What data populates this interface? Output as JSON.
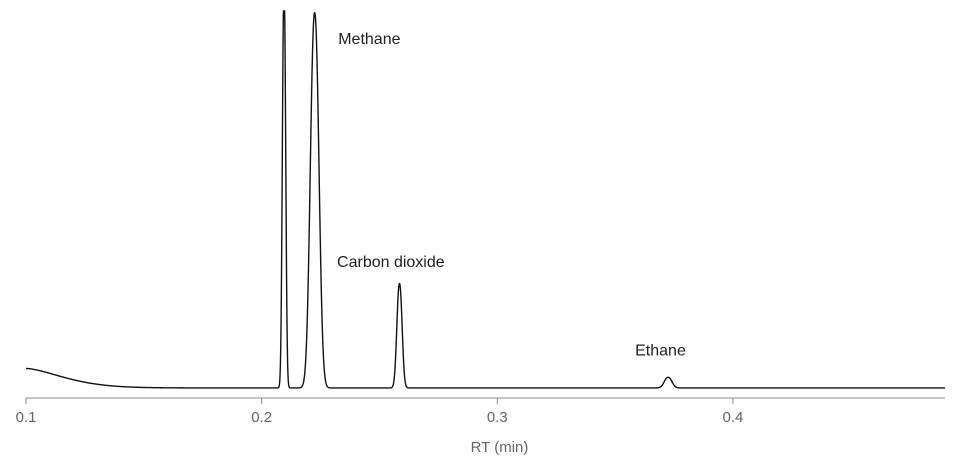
{
  "chart_data": {
    "type": "line",
    "xlabel": "RT (min)",
    "ylabel": "",
    "xlim": [
      0.1,
      0.49
    ],
    "ylim": [
      0,
      100
    ],
    "x_ticks": [
      "0.1",
      "0.2",
      "0.3",
      "0.4"
    ],
    "y_axis_visible": false,
    "grid": false,
    "baseline": 0.3,
    "tail": {
      "start_x": 0.1,
      "amplitude": 5.5,
      "width": 0.022
    },
    "series": [
      {
        "peaks": [
          {
            "label": "",
            "rt": 0.2095,
            "height": 114,
            "width": 0.0007,
            "clipped": true
          },
          {
            "label": "Methane",
            "rt": 0.2225,
            "height": 106,
            "width": 0.0018,
            "clipped": true
          },
          {
            "label": "Carbon dioxide",
            "rt": 0.2585,
            "height": 29.5,
            "width": 0.0011,
            "clipped": false
          },
          {
            "label": "Ethane",
            "rt": 0.3725,
            "height": 3.0,
            "width": 0.0016,
            "clipped": false
          }
        ]
      }
    ],
    "annotations": [
      {
        "text": "Methane",
        "x": 0.2325,
        "y": 97.5
      },
      {
        "text": "Carbon dioxide",
        "x": 0.232,
        "y": 34.5
      },
      {
        "text": "Ethane",
        "x": 0.3585,
        "y": 9.5
      }
    ]
  }
}
